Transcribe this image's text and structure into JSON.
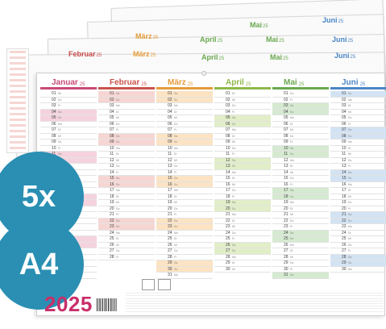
{
  "product": {
    "badge_count": "5x",
    "badge_format": "A4",
    "year": "2025"
  },
  "calendar": {
    "year_suffix": "25",
    "background_headers": [
      {
        "month": "Mai",
        "color": "#6aa84f"
      },
      {
        "month": "Juni",
        "color": "#4a86c5"
      },
      {
        "month": "März",
        "color": "#e69b3a"
      },
      {
        "month": "April",
        "color": "#6aa84f"
      },
      {
        "month": "Februar",
        "color": "#c94a4a"
      }
    ],
    "months": [
      {
        "name": "Januar",
        "color": "#c94a78",
        "shade": "#f4d3de"
      },
      {
        "name": "Februar",
        "color": "#c9534a",
        "shade": "#f6d6d3"
      },
      {
        "name": "März",
        "color": "#e69b3a",
        "shade": "#fbe3c4"
      },
      {
        "name": "April",
        "color": "#8fb84a",
        "shade": "#e1eec8"
      },
      {
        "name": "Mai",
        "color": "#6aa84f",
        "shade": "#d5ead0"
      },
      {
        "name": "Juni",
        "color": "#4a86c5",
        "shade": "#d3e3f3"
      }
    ],
    "week_numbers": [
      "01",
      "02",
      "03",
      "05",
      "06",
      "07",
      "08",
      "09",
      "10",
      "11",
      "12",
      "13",
      "14",
      "15",
      "16",
      "17",
      "18",
      "19",
      "20",
      "21",
      "22",
      "23",
      "24",
      "25",
      "26",
      "27"
    ]
  },
  "colors": {
    "badge": "#2a8fb3",
    "year": "#c92f6a"
  }
}
